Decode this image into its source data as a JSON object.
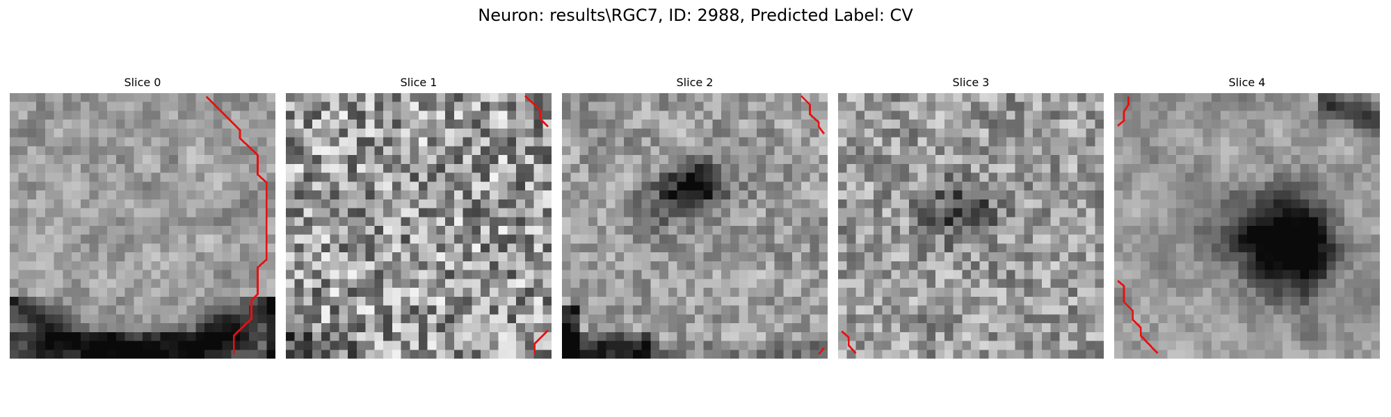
{
  "figure": {
    "title": "Neuron: results\\RGC7, ID: 2988, Predicted Label: CV",
    "colormap": "grayscale",
    "overlay_color": "#e81010"
  },
  "slices": [
    {
      "title": "Slice 0",
      "seed": 11,
      "smooth_noise": 0.55,
      "dark_feature": "bottom-arc",
      "overlay": "right-edge-contour"
    },
    {
      "title": "Slice 1",
      "seed": 23,
      "smooth_noise": 0.0,
      "dark_feature": "none",
      "overlay": "top-right and bottom-right corner segments"
    },
    {
      "title": "Slice 2",
      "seed": 37,
      "smooth_noise": 0.35,
      "dark_feature": "center-blob and bottom-left edge",
      "overlay": "top-right and bottom-right corner segments"
    },
    {
      "title": "Slice 3",
      "seed": 41,
      "smooth_noise": 0.1,
      "dark_feature": "faint center blob",
      "overlay": "bottom-left corner segment"
    },
    {
      "title": "Slice 4",
      "seed": 53,
      "smooth_noise": 0.65,
      "dark_feature": "large right-center blob and top-right edge",
      "overlay": "top-left and bottom-left segments"
    }
  ]
}
